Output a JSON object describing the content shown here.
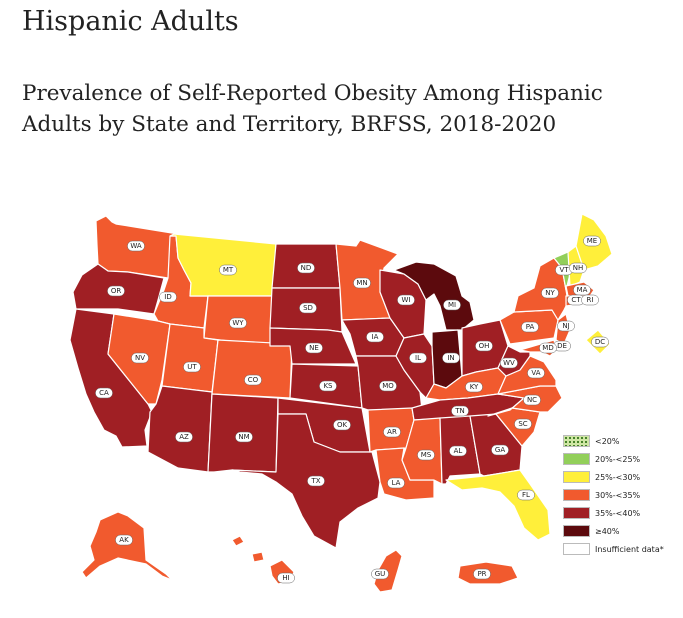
{
  "page": {
    "heading": "Hispanic Adults",
    "map_title": "Prevalence of Self-Reported Obesity Among Hispanic Adults by State and Territory, BRFSS, 2018-2020"
  },
  "legend": [
    {
      "key": "lt20",
      "label": "<20%",
      "color": "#cfe6a4",
      "pattern": "dotted"
    },
    {
      "key": "20to25",
      "label": "20%-<25%",
      "color": "#92cf5a"
    },
    {
      "key": "25to30",
      "label": "25%-<30%",
      "color": "#ffef3a"
    },
    {
      "key": "30to35",
      "label": "30%-<35%",
      "color": "#f15a2e"
    },
    {
      "key": "35to40",
      "label": "35%-<40%",
      "color": "#a01f24"
    },
    {
      "key": "ge40",
      "label": "≥40%",
      "color": "#5c0a0d"
    },
    {
      "key": "insufficient",
      "label": "Insufficient data*",
      "color": "#ffffff"
    }
  ],
  "regions": [
    {
      "abbr": "WA",
      "category": "30to35"
    },
    {
      "abbr": "OR",
      "category": "35to40"
    },
    {
      "abbr": "CA",
      "category": "35to40"
    },
    {
      "abbr": "ID",
      "category": "30to35"
    },
    {
      "abbr": "NV",
      "category": "30to35"
    },
    {
      "abbr": "MT",
      "category": "25to30"
    },
    {
      "abbr": "WY",
      "category": "30to35"
    },
    {
      "abbr": "UT",
      "category": "30to35"
    },
    {
      "abbr": "AZ",
      "category": "35to40"
    },
    {
      "abbr": "CO",
      "category": "30to35"
    },
    {
      "abbr": "NM",
      "category": "35to40"
    },
    {
      "abbr": "ND",
      "category": "35to40"
    },
    {
      "abbr": "SD",
      "category": "35to40"
    },
    {
      "abbr": "NE",
      "category": "35to40"
    },
    {
      "abbr": "KS",
      "category": "35to40"
    },
    {
      "abbr": "OK",
      "category": "35to40"
    },
    {
      "abbr": "TX",
      "category": "35to40"
    },
    {
      "abbr": "MN",
      "category": "30to35"
    },
    {
      "abbr": "IA",
      "category": "35to40"
    },
    {
      "abbr": "MO",
      "category": "35to40"
    },
    {
      "abbr": "AR",
      "category": "30to35"
    },
    {
      "abbr": "LA",
      "category": "30to35"
    },
    {
      "abbr": "WI",
      "category": "35to40"
    },
    {
      "abbr": "IL",
      "category": "35to40"
    },
    {
      "abbr": "MI",
      "category": "ge40"
    },
    {
      "abbr": "IN",
      "category": "ge40"
    },
    {
      "abbr": "OH",
      "category": "35to40"
    },
    {
      "abbr": "KY",
      "category": "30to35"
    },
    {
      "abbr": "TN",
      "category": "35to40"
    },
    {
      "abbr": "MS",
      "category": "30to35"
    },
    {
      "abbr": "AL",
      "category": "35to40"
    },
    {
      "abbr": "GA",
      "category": "35to40"
    },
    {
      "abbr": "FL",
      "category": "25to30"
    },
    {
      "abbr": "SC",
      "category": "30to35"
    },
    {
      "abbr": "NC",
      "category": "30to35"
    },
    {
      "abbr": "VA",
      "category": "30to35"
    },
    {
      "abbr": "WV",
      "category": "35to40"
    },
    {
      "abbr": "PA",
      "category": "30to35"
    },
    {
      "abbr": "NY",
      "category": "30to35"
    },
    {
      "abbr": "NJ",
      "category": "30to35"
    },
    {
      "abbr": "DE",
      "category": "30to35"
    },
    {
      "abbr": "MD",
      "category": "30to35"
    },
    {
      "abbr": "DC",
      "category": "25to30"
    },
    {
      "abbr": "VT",
      "category": "20to25"
    },
    {
      "abbr": "NH",
      "category": "25to30"
    },
    {
      "abbr": "ME",
      "category": "25to30"
    },
    {
      "abbr": "MA",
      "category": "30to35"
    },
    {
      "abbr": "CT",
      "category": "30to35"
    },
    {
      "abbr": "RI",
      "category": "30to35"
    },
    {
      "abbr": "AK",
      "category": "30to35"
    },
    {
      "abbr": "HI",
      "category": "30to35"
    },
    {
      "abbr": "GU",
      "category": "30to35"
    },
    {
      "abbr": "PR",
      "category": "30to35"
    }
  ]
}
